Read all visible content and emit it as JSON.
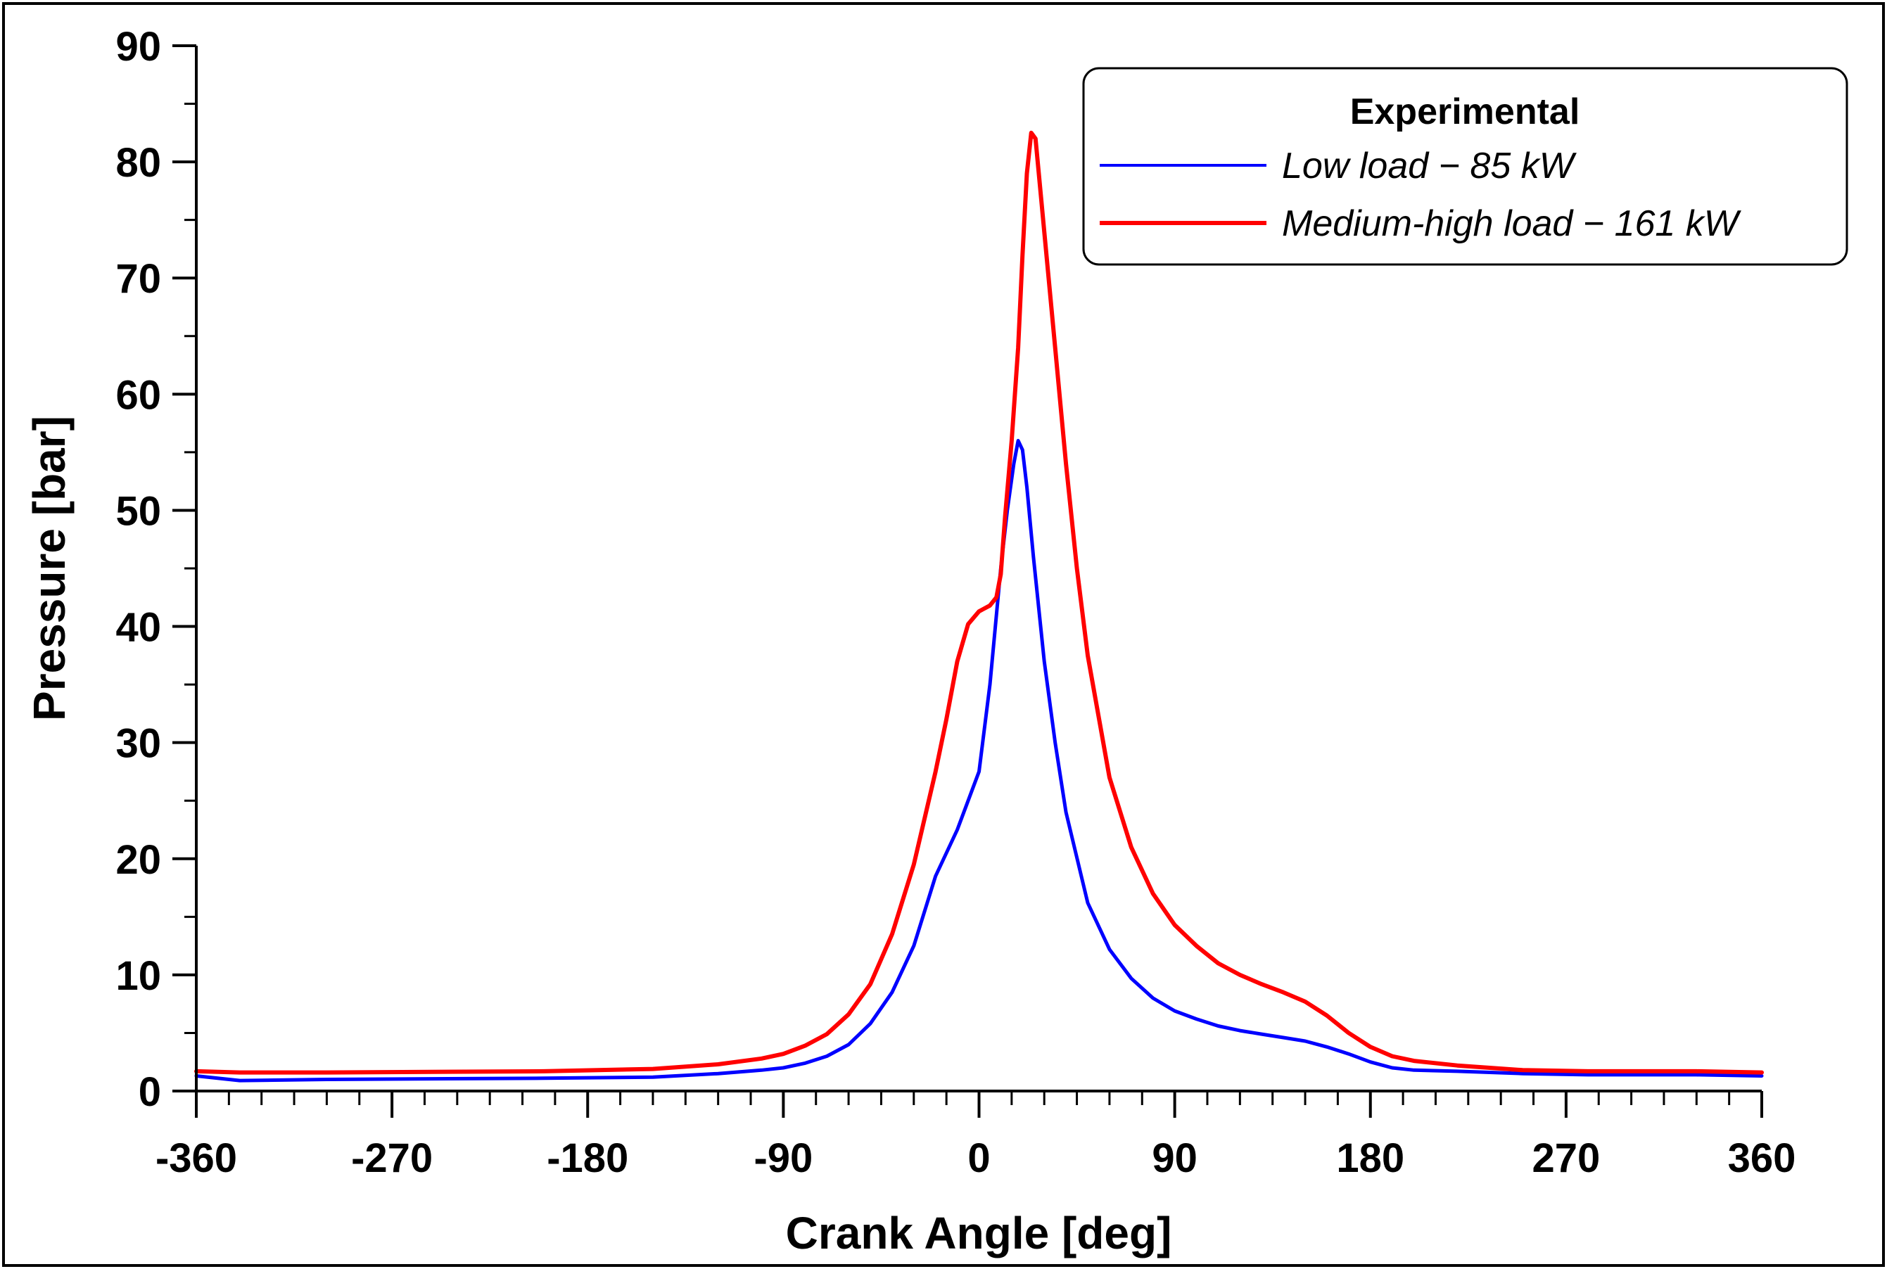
{
  "chart_data": {
    "type": "line",
    "xlabel": "Crank Angle [deg]",
    "ylabel": "Pressure [bar]",
    "xlim": [
      -360,
      360
    ],
    "ylim": [
      0,
      90
    ],
    "xticks": [
      -360,
      -270,
      -180,
      -90,
      0,
      90,
      180,
      270,
      360
    ],
    "yticks": [
      0,
      10,
      20,
      30,
      40,
      50,
      60,
      70,
      80,
      90
    ],
    "x_minor_step": 15,
    "y_minor_step": 5,
    "grid": false,
    "legend": {
      "title": "Experimental",
      "placement": "top-right"
    },
    "series": [
      {
        "name": "Low load - 85 kW",
        "label": "Low load − 85 kW",
        "color": "#0000ff",
        "x": [
          -360,
          -340,
          -300,
          -200,
          -150,
          -120,
          -100,
          -90,
          -80,
          -70,
          -60,
          -50,
          -40,
          -30,
          -20,
          -10,
          0,
          5,
          10,
          13,
          16,
          18,
          20,
          22,
          25,
          30,
          35,
          40,
          50,
          60,
          70,
          80,
          90,
          100,
          110,
          120,
          130,
          140,
          150,
          160,
          170,
          180,
          190,
          200,
          220,
          250,
          280,
          300,
          330,
          360
        ],
        "y": [
          1.3,
          0.9,
          1.0,
          1.1,
          1.2,
          1.5,
          1.8,
          2.0,
          2.4,
          3.0,
          4.0,
          5.8,
          8.5,
          12.5,
          18.5,
          22.5,
          27.5,
          35,
          45,
          50,
          54,
          56,
          55.2,
          52,
          46,
          37,
          30,
          24,
          16.2,
          12.2,
          9.7,
          8.0,
          6.9,
          6.2,
          5.6,
          5.2,
          4.9,
          4.6,
          4.3,
          3.8,
          3.2,
          2.5,
          2.0,
          1.8,
          1.7,
          1.5,
          1.4,
          1.4,
          1.4,
          1.3
        ]
      },
      {
        "name": "Medium-high load - 161 kW",
        "label": "Medium-high load − 161 kW",
        "color": "#ff0000",
        "x": [
          -360,
          -340,
          -300,
          -200,
          -150,
          -120,
          -100,
          -90,
          -80,
          -70,
          -60,
          -50,
          -40,
          -30,
          -20,
          -15,
          -10,
          -5,
          0,
          5,
          8,
          10,
          12,
          15,
          18,
          20,
          22,
          24,
          26,
          28,
          30,
          35,
          40,
          45,
          50,
          60,
          70,
          80,
          90,
          100,
          110,
          120,
          130,
          140,
          150,
          160,
          170,
          180,
          190,
          200,
          220,
          250,
          280,
          300,
          330,
          360
        ],
        "y": [
          1.7,
          1.6,
          1.6,
          1.7,
          1.9,
          2.3,
          2.8,
          3.2,
          3.9,
          4.9,
          6.6,
          9.2,
          13.5,
          19.5,
          27.5,
          32.0,
          37.0,
          40.2,
          41.3,
          41.8,
          42.5,
          44.5,
          49.5,
          56.0,
          64.0,
          72.0,
          79.0,
          82.5,
          82.0,
          78.0,
          74.0,
          64.0,
          54.0,
          45.0,
          37.5,
          27.0,
          21.0,
          17.0,
          14.3,
          12.5,
          11.0,
          10.0,
          9.2,
          8.5,
          7.7,
          6.5,
          5.0,
          3.8,
          3.0,
          2.6,
          2.2,
          1.8,
          1.7,
          1.7,
          1.7,
          1.6
        ]
      }
    ]
  }
}
